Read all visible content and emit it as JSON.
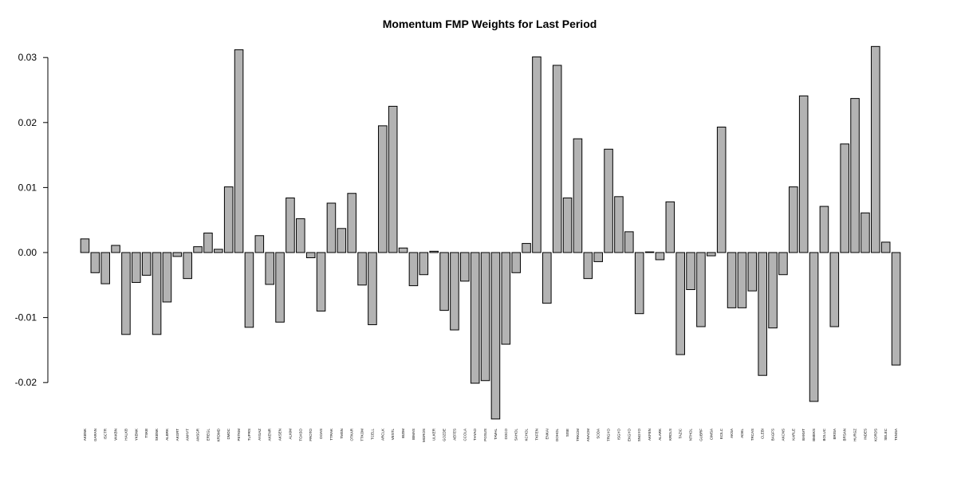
{
  "chart_data": {
    "type": "bar",
    "title": "Momentum FMP Weights for Last Period",
    "xlabel": "",
    "ylabel": "",
    "ylim": [
      -0.026,
      0.032
    ],
    "yticks": [
      -0.02,
      -0.01,
      0.0,
      0.01,
      0.02,
      0.03
    ],
    "ytick_labels": [
      "-0.02",
      "-0.01",
      "0.00",
      "0.01",
      "0.02",
      "0.03"
    ],
    "bar_color": "#b3b3b3",
    "grid": false,
    "legend": "none",
    "categories": [
      "AKBNK",
      "GARAN",
      "ISCTR",
      "VAKBN",
      "HALKB",
      "YKBNK",
      "TSKB",
      "SKBNK",
      "ALBRK",
      "AKGRT",
      "ANHYT",
      "ANSGR",
      "EREGL",
      "KRDMD",
      "DMDC",
      "PETKM",
      "TUPRS",
      "AYGAZ",
      "AKENR",
      "AKSEN",
      "ALKIM",
      "TOASO",
      "FROTO",
      "DOAS",
      "TTRAK",
      "TMSN",
      "OTKAR",
      "TTKOM",
      "TCELL",
      "ARCLK",
      "VESTL",
      "BIZIM",
      "BIMAS",
      "MGROS",
      "ULKER",
      "GOZDE",
      "AEFES",
      "CCOLA",
      "THYAO",
      "PGSUS",
      "TAVHL",
      "DOCO",
      "SAHOL",
      "KCHOL",
      "TKFEN",
      "ENKAI",
      "DOHOL",
      "SISE",
      "TRKCM",
      "ANACM",
      "SODA",
      "TRGYO",
      "ISGYO",
      "EKGYO",
      "SNGYO",
      "AKFEN",
      "ALARK",
      "KRDLS",
      "TAZIC",
      "NTHOL",
      "GUBRF",
      "CIMSA",
      "ECILC",
      "AKSA",
      "ADEL",
      "TRCAS",
      "CLEBI",
      "BAGFS",
      "AKCNS",
      "KARLE",
      "BANVT",
      "BMEKS",
      "BOLUC",
      "BRISA",
      "BRSAN",
      "HURGZ",
      "INDES",
      "KORDS",
      "SELEC",
      "TKNSA"
    ],
    "values": [
      0.0021,
      -0.0031,
      -0.0048,
      0.0011,
      -0.0126,
      -0.0046,
      -0.0035,
      -0.0126,
      -0.0076,
      -0.0006,
      -0.004,
      0.0009,
      0.003,
      0.0005,
      0.0101,
      0.0312,
      -0.0115,
      0.0026,
      -0.0049,
      -0.0107,
      0.0084,
      0.0052,
      -0.0008,
      -0.009,
      0.0076,
      0.0037,
      0.0091,
      -0.005,
      -0.0111,
      0.0195,
      0.0225,
      0.0007,
      -0.0051,
      -0.0034,
      0.0002,
      -0.0089,
      -0.0119,
      -0.0044,
      -0.0201,
      -0.0197,
      -0.0256,
      -0.0141,
      -0.0031,
      0.0014,
      0.0301,
      -0.0078,
      0.0288,
      0.0084,
      0.0175,
      -0.004,
      -0.0014,
      0.0159,
      0.0086,
      0.0032,
      -0.0094,
      0.0001,
      -0.0011,
      0.0078,
      -0.0157,
      -0.0057,
      -0.0114,
      -0.0005,
      0.0193,
      -0.0085,
      -0.0085,
      -0.0059,
      -0.0189,
      -0.0116,
      -0.0034,
      0.0101,
      0.0241,
      -0.0229,
      0.0071,
      -0.0114,
      0.0167,
      0.0237,
      0.0061,
      0.0317,
      0.0016,
      -0.0173
    ]
  }
}
